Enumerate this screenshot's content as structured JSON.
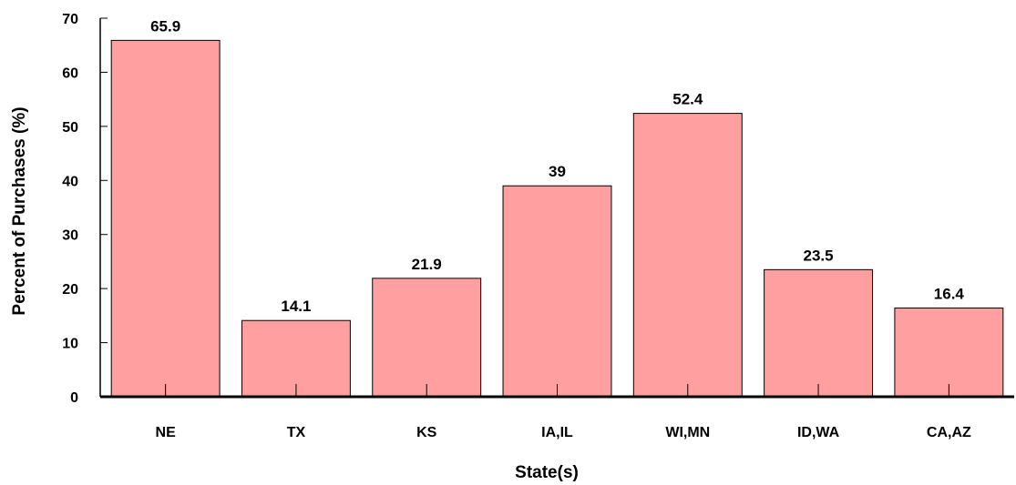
{
  "chart_data": {
    "type": "bar",
    "categories": [
      "NE",
      "TX",
      "KS",
      "IA,IL",
      "WI,MN",
      "ID,WA",
      "CA,AZ"
    ],
    "values": [
      65.9,
      14.1,
      21.9,
      39,
      52.4,
      23.5,
      16.4
    ],
    "data_labels": [
      "65.9",
      "14.1",
      "21.9",
      "39",
      "52.4",
      "23.5",
      "16.4"
    ],
    "title": "",
    "xlabel": "State(s)",
    "ylabel": "Percent of Purchases (%)",
    "ylim": [
      0,
      70
    ],
    "yticks": [
      "0",
      "10",
      "20",
      "30",
      "40",
      "50",
      "60",
      "70"
    ],
    "grid": false,
    "legend": "none",
    "colors": {
      "bar_fill": "#ff9f9f",
      "bar_stroke": "#000000",
      "axis": "#000000"
    }
  }
}
